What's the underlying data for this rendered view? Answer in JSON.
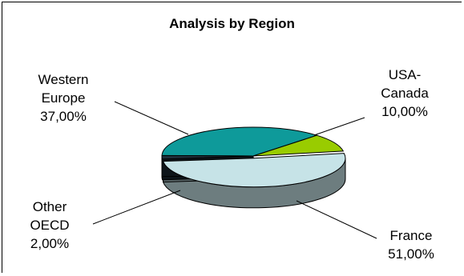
{
  "chart_data": {
    "type": "pie",
    "title": "Analysis by Region",
    "categories": [
      "Western Europe",
      "USA-Canada",
      "France",
      "Other OECD"
    ],
    "values": [
      37,
      10,
      51,
      2
    ],
    "value_labels": [
      "37,00%",
      "10,00%",
      "51,00%",
      "2,00%"
    ],
    "label_lines": [
      [
        "Western",
        "Europe",
        "37,00%"
      ],
      [
        "USA-",
        "Canada",
        "10,00%"
      ],
      [
        "France",
        "51,00%"
      ],
      [
        "Other",
        "OECD",
        "2,00%"
      ]
    ],
    "legend": "none",
    "style": "3d-exploded",
    "colors": [
      "#0e9a9a",
      "#99cc00",
      "#c6e3e7",
      "#1f2f3a"
    ]
  }
}
